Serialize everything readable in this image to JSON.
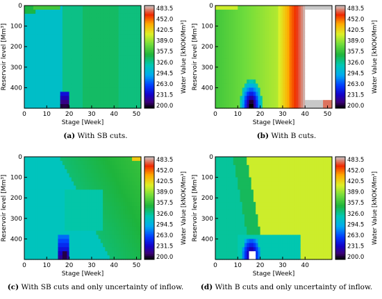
{
  "panels": [
    {
      "tag": "(a)",
      "caption": "With SB cuts.",
      "variant": "sb_full"
    },
    {
      "tag": "(b)",
      "caption": "With B cuts.",
      "variant": "b_full"
    },
    {
      "tag": "(c)",
      "caption": "With SB cuts and only uncertainty of inflow.",
      "variant": "sb_inflow"
    },
    {
      "tag": "(d)",
      "caption": "With B cuts and only uncertainty of inflow.",
      "variant": "b_inflow"
    }
  ],
  "chart_data": [
    {
      "type": "heatmap",
      "title": "",
      "xlabel": "Stage [Week]",
      "ylabel": "Reservoir level [Mm³]",
      "colorbar_label": "Water Value [kNOK/Mm³]",
      "xlim": [
        0,
        52
      ],
      "ylim": [
        500,
        0
      ],
      "xticks": [
        "0",
        "10",
        "20",
        "30",
        "40",
        "50"
      ],
      "yticks": [
        "0",
        "100",
        "200",
        "300",
        "400"
      ],
      "colorbar_ticks": [
        "483.5",
        "452.0",
        "420.5",
        "389.0",
        "357.5",
        "326.0",
        "294.5",
        "263.0",
        "231.5",
        "200.0"
      ],
      "value_range": [
        200.0,
        483.5
      ],
      "note": "Water values mostly 300–330; darker green band for weeks 18–40; small low-value spot near week 18, level ~480."
    },
    {
      "type": "heatmap",
      "title": "",
      "xlabel": "Stage [Week]",
      "ylabel": "Reservoir level [Mm³]",
      "colorbar_label": "Water Value [kNOK/Mm³]",
      "xlim": [
        0,
        52
      ],
      "ylim": [
        500,
        0
      ],
      "xticks": [
        "0",
        "10",
        "20",
        "30",
        "40",
        "50"
      ],
      "yticks": [
        "0",
        "100",
        "200",
        "300",
        "400"
      ],
      "colorbar_ticks": [
        "483.5",
        "452.0",
        "420.5",
        "389.0",
        "357.5",
        "326.0",
        "294.5",
        "263.0",
        "231.5",
        "200.0"
      ],
      "value_range": [
        200.0,
        483.5
      ],
      "note": "Values rise from ~360 (green) to >480 (red) around weeks 35–40; white cells beyond color range near weeks 40–48; low-value dome near week 16 at high reservoir level."
    },
    {
      "type": "heatmap",
      "title": "",
      "xlabel": "Stage [Week]",
      "ylabel": "Reservoir level [Mm³]",
      "colorbar_label": "Water Value [kNOK/Mm³]",
      "xlim": [
        0,
        52
      ],
      "ylim": [
        500,
        0
      ],
      "xticks": [
        "0",
        "10",
        "20",
        "30",
        "40",
        "50"
      ],
      "yticks": [
        "0",
        "100",
        "200",
        "300",
        "400"
      ],
      "colorbar_ticks": [
        "483.5",
        "452.0",
        "420.5",
        "389.0",
        "357.5",
        "326.0",
        "294.5",
        "263.0",
        "231.5",
        "200.0"
      ],
      "value_range": [
        200.0,
        483.5
      ],
      "note": "Mostly 300–340; green wedge from top right; low-value cells near week 17, level ~470."
    },
    {
      "type": "heatmap",
      "title": "",
      "xlabel": "Stage [Week]",
      "ylabel": "Reservoir level [Mm³]",
      "colorbar_label": "Water Value [kNOK/Mm³]",
      "xlim": [
        0,
        52
      ],
      "ylim": [
        500,
        0
      ],
      "xticks": [
        "0",
        "10",
        "20",
        "30",
        "40"
      ],
      "yticks": [
        "0",
        "100",
        "200",
        "300",
        "400"
      ],
      "colorbar_ticks": [
        "483.5",
        "452.0",
        "420.5",
        "389.0",
        "357.5",
        "326.0",
        "294.5",
        "263.0",
        "231.5",
        "200.0"
      ],
      "value_range": [
        200.0,
        483.5
      ],
      "note": "Dominantly yellow (~400) from week 10 onward; green region at weeks 0–20 lower levels; low-value dome near week 16 at level ~450."
    }
  ]
}
